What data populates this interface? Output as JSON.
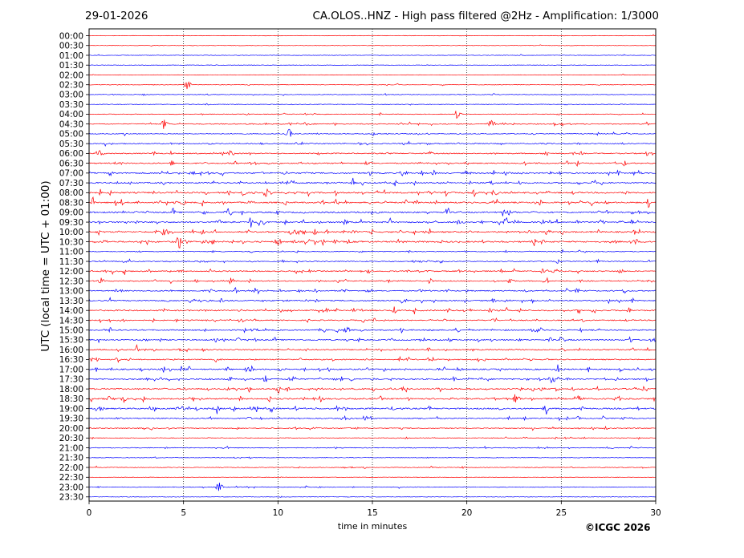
{
  "header": {
    "date": "29-01-2026",
    "title": "CA.OLOS..HNZ - High pass filtered @2Hz - Amplification: 1/3000"
  },
  "footer": {
    "copyright": "©ICGC 2026"
  },
  "chart_data": {
    "type": "line",
    "title": "CA.OLOS..HNZ - High pass filtered @2Hz - Amplification: 1/3000",
    "xlabel": "time in minutes",
    "ylabel": "UTC (local time = UTC + 01:00)",
    "xlim": [
      0,
      30
    ],
    "x_ticks": [
      0,
      5,
      10,
      15,
      20,
      25,
      30
    ],
    "vertical_gridlines_dotted": [
      5,
      10,
      15,
      20,
      25
    ],
    "row_labels": [
      "00:00",
      "00:30",
      "01:00",
      "01:30",
      "02:00",
      "02:30",
      "03:00",
      "03:30",
      "04:00",
      "04:30",
      "05:00",
      "05:30",
      "06:00",
      "06:30",
      "07:00",
      "07:30",
      "08:00",
      "08:30",
      "09:00",
      "09:30",
      "10:00",
      "10:30",
      "11:00",
      "11:30",
      "12:00",
      "12:30",
      "13:00",
      "13:30",
      "14:00",
      "14:30",
      "15:00",
      "15:30",
      "16:00",
      "16:30",
      "17:00",
      "17:30",
      "18:00",
      "18:30",
      "19:00",
      "19:30",
      "20:00",
      "20:30",
      "21:00",
      "21:30",
      "22:00",
      "22:30",
      "23:00",
      "23:30"
    ],
    "series_colors": [
      "#ff0000",
      "#0000ff"
    ],
    "color_pattern": "alternating hourly pairs: red, blue",
    "activity_level": [
      0.05,
      0.05,
      0.1,
      0.05,
      0.05,
      0.15,
      0.15,
      0.1,
      0.2,
      0.5,
      0.3,
      0.5,
      0.6,
      0.7,
      0.8,
      0.8,
      0.9,
      0.9,
      0.9,
      0.9,
      0.9,
      1.0,
      0.3,
      0.5,
      0.7,
      0.6,
      0.7,
      0.7,
      0.8,
      0.6,
      0.7,
      0.7,
      0.7,
      0.6,
      0.8,
      0.8,
      0.9,
      0.9,
      0.9,
      0.6,
      0.4,
      0.3,
      0.3,
      0.1,
      0.2,
      0.05,
      0.25,
      0.05
    ],
    "notable_events": [
      {
        "row": "02:30",
        "minute": 5.2
      },
      {
        "row": "04:00",
        "minute": 19.5
      },
      {
        "row": "04:30",
        "minute": 4.0
      },
      {
        "row": "04:30",
        "minute": 21.3
      },
      {
        "row": "05:00",
        "minute": 10.6
      },
      {
        "row": "09:30",
        "minute": 9.1
      },
      {
        "row": "10:30",
        "minute": 4.8
      },
      {
        "row": "12:30",
        "minute": 22.3
      },
      {
        "row": "17:30",
        "minute": 24.5
      },
      {
        "row": "23:00",
        "minute": 6.9
      }
    ]
  }
}
